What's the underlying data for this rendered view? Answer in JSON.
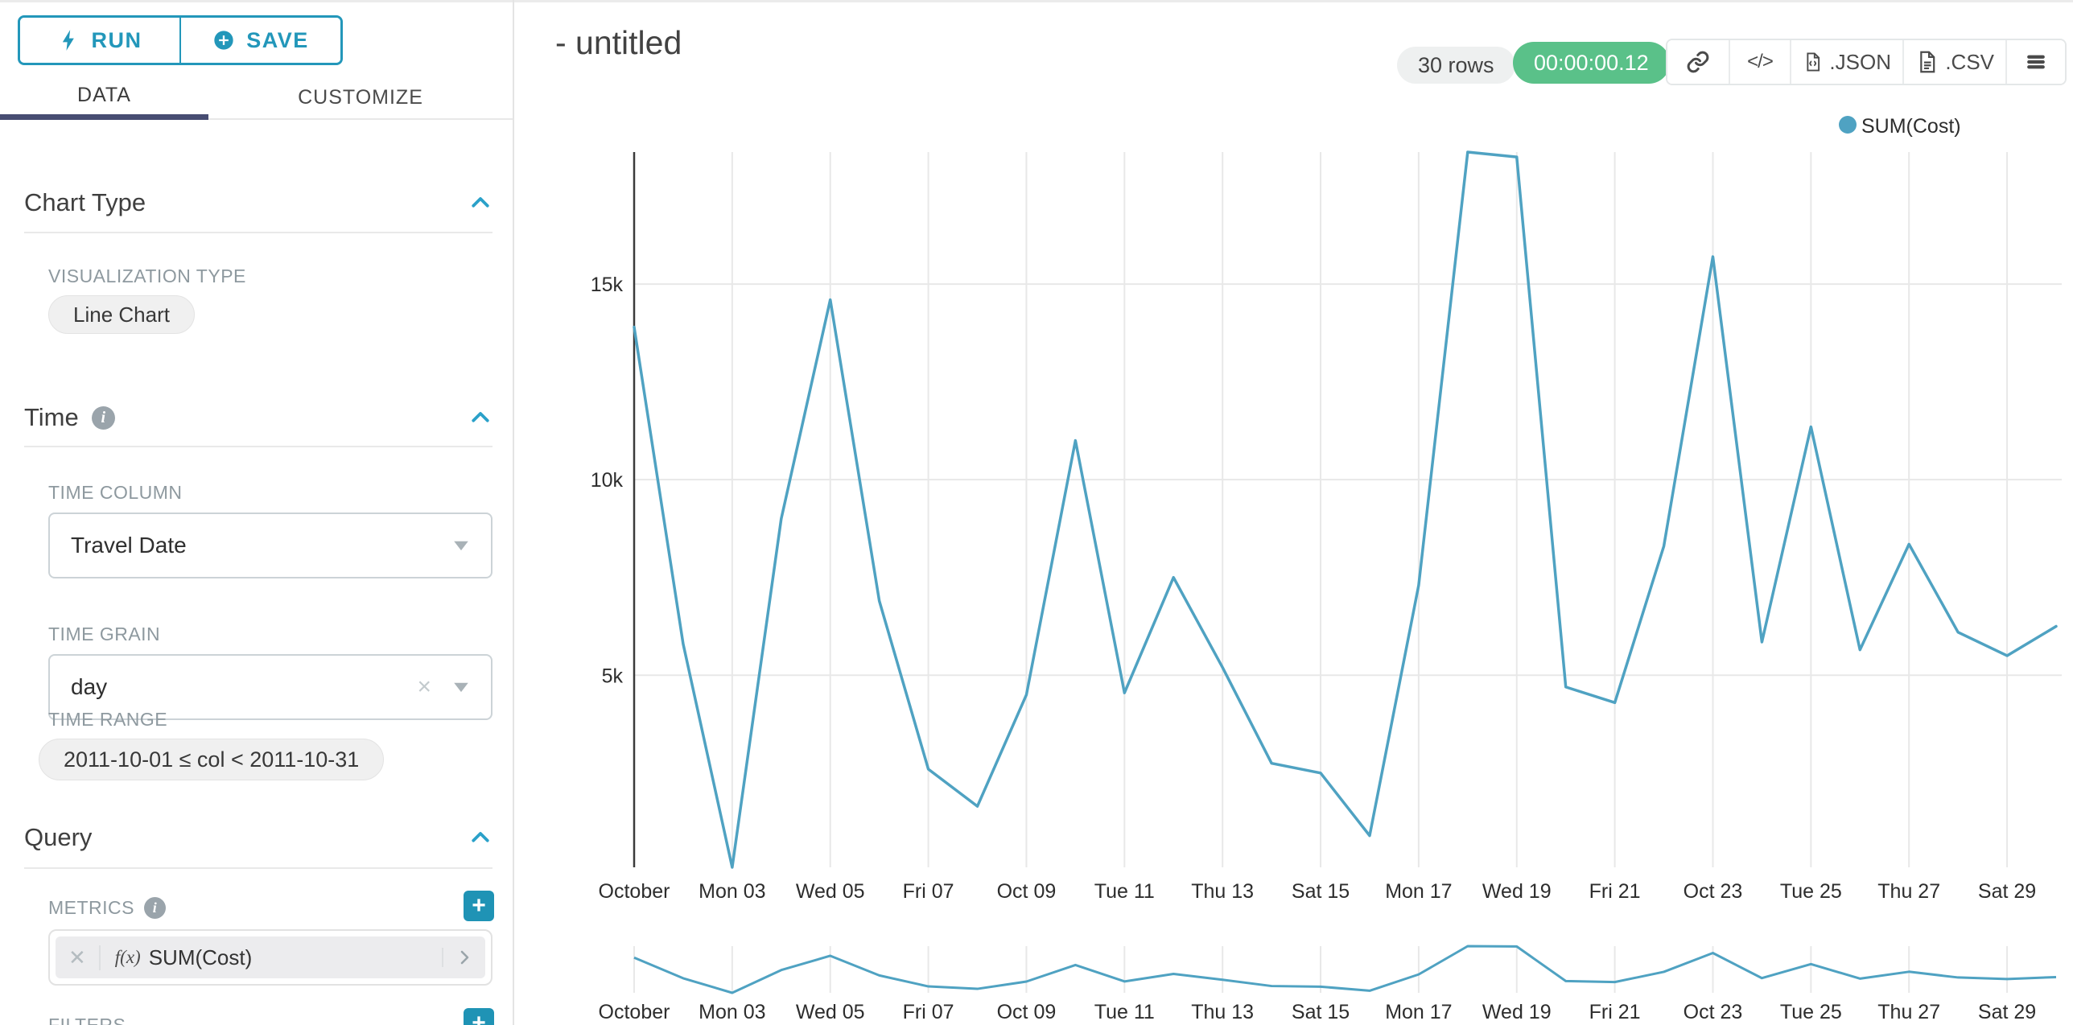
{
  "colors": {
    "accent": "#2397ba",
    "plus_button": "#1f93b5",
    "active_tab_underline": "#474d72",
    "timer_badge_green": "#5ac189",
    "line_series": "#4fa2c2",
    "grid": "#e8e8e8",
    "axis": "#3b3b3b"
  },
  "panel": {
    "run_label": "RUN",
    "save_label": "SAVE",
    "tabs": [
      {
        "label": "DATA"
      },
      {
        "label": "CUSTOMIZE"
      }
    ],
    "chart_type": {
      "title": "Chart Type",
      "viz_type_label": "VISUALIZATION TYPE",
      "viz_type_value": "Line Chart"
    },
    "time": {
      "title": "Time",
      "time_column_label": "TIME COLUMN",
      "time_column_value": "Travel Date",
      "time_grain_label": "TIME GRAIN",
      "time_grain_value": "day",
      "time_range_label": "TIME RANGE",
      "time_range_value": "2011-10-01 ≤ col < 2011-10-31"
    },
    "query": {
      "title": "Query",
      "metrics_label": "METRICS",
      "metric_fx": "f(x)",
      "metric_value": "SUM(Cost)",
      "filters_label": "FILTERS"
    }
  },
  "header": {
    "title": "- untitled",
    "rows_badge": "30 rows",
    "timer_badge": "00:00:00.12",
    "json_label": ".JSON",
    "csv_label": ".CSV",
    "code_glyph": "</>"
  },
  "chart_data": {
    "type": "line",
    "title": "",
    "xlabel": "",
    "ylabel": "",
    "grid": true,
    "legend_position": "top-right",
    "ylim": [
      90,
      18375
    ],
    "y_ticks": [
      {
        "value": 5000,
        "label": "5k"
      },
      {
        "value": 10000,
        "label": "10k"
      },
      {
        "value": 15000,
        "label": "15k"
      }
    ],
    "x": [
      "2011-10-01",
      "2011-10-02",
      "2011-10-03",
      "2011-10-04",
      "2011-10-05",
      "2011-10-06",
      "2011-10-07",
      "2011-10-08",
      "2011-10-09",
      "2011-10-10",
      "2011-10-11",
      "2011-10-12",
      "2011-10-13",
      "2011-10-14",
      "2011-10-15",
      "2011-10-16",
      "2011-10-17",
      "2011-10-18",
      "2011-10-19",
      "2011-10-20",
      "2011-10-21",
      "2011-10-22",
      "2011-10-23",
      "2011-10-24",
      "2011-10-25",
      "2011-10-26",
      "2011-10-27",
      "2011-10-28",
      "2011-10-29",
      "2011-10-30"
    ],
    "x_tick_every": 2,
    "x_tick_labels": [
      "October",
      "Mon 03",
      "Wed 05",
      "Fri 07",
      "Oct 09",
      "Tue 11",
      "Thu 13",
      "Sat 15",
      "Mon 17",
      "Wed 19",
      "Fri 21",
      "Oct 23",
      "Tue 25",
      "Thu 27",
      "Sat 29"
    ],
    "series": [
      {
        "name": "SUM(Cost)",
        "color": "#4fa2c2",
        "values": [
          13900,
          5800,
          90,
          9000,
          14600,
          6900,
          2600,
          1650,
          4500,
          11000,
          4550,
          7500,
          5200,
          2750,
          2500,
          900,
          7300,
          18375,
          18250,
          4700,
          4300,
          8300,
          15700,
          5850,
          11350,
          5650,
          8350,
          6100,
          5500,
          6250
        ]
      }
    ],
    "has_mini_preview": true
  }
}
